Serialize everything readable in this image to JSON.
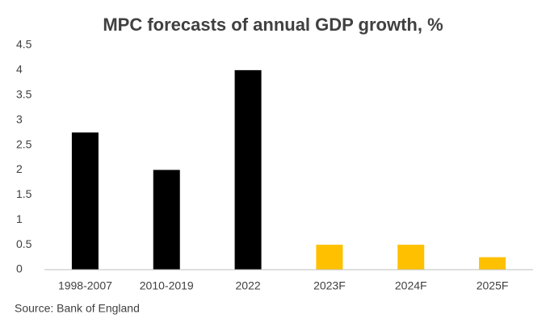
{
  "chart_data": {
    "type": "bar",
    "title": "MPC forecasts of annual GDP growth, %",
    "categories": [
      "1998-2007",
      "2010-2019",
      "2022",
      "2023F",
      "2024F",
      "2025F"
    ],
    "values": [
      2.75,
      2,
      4,
      0.5,
      0.5,
      0.25
    ],
    "colors": [
      "#000000",
      "#000000",
      "#000000",
      "#ffc000",
      "#ffc000",
      "#ffc000"
    ],
    "ylim": [
      0,
      4.5
    ],
    "yticks": [
      0,
      0.5,
      1,
      1.5,
      2,
      2.5,
      3,
      3.5,
      4,
      4.5
    ],
    "grid": false,
    "source": "Source: Bank of England"
  }
}
